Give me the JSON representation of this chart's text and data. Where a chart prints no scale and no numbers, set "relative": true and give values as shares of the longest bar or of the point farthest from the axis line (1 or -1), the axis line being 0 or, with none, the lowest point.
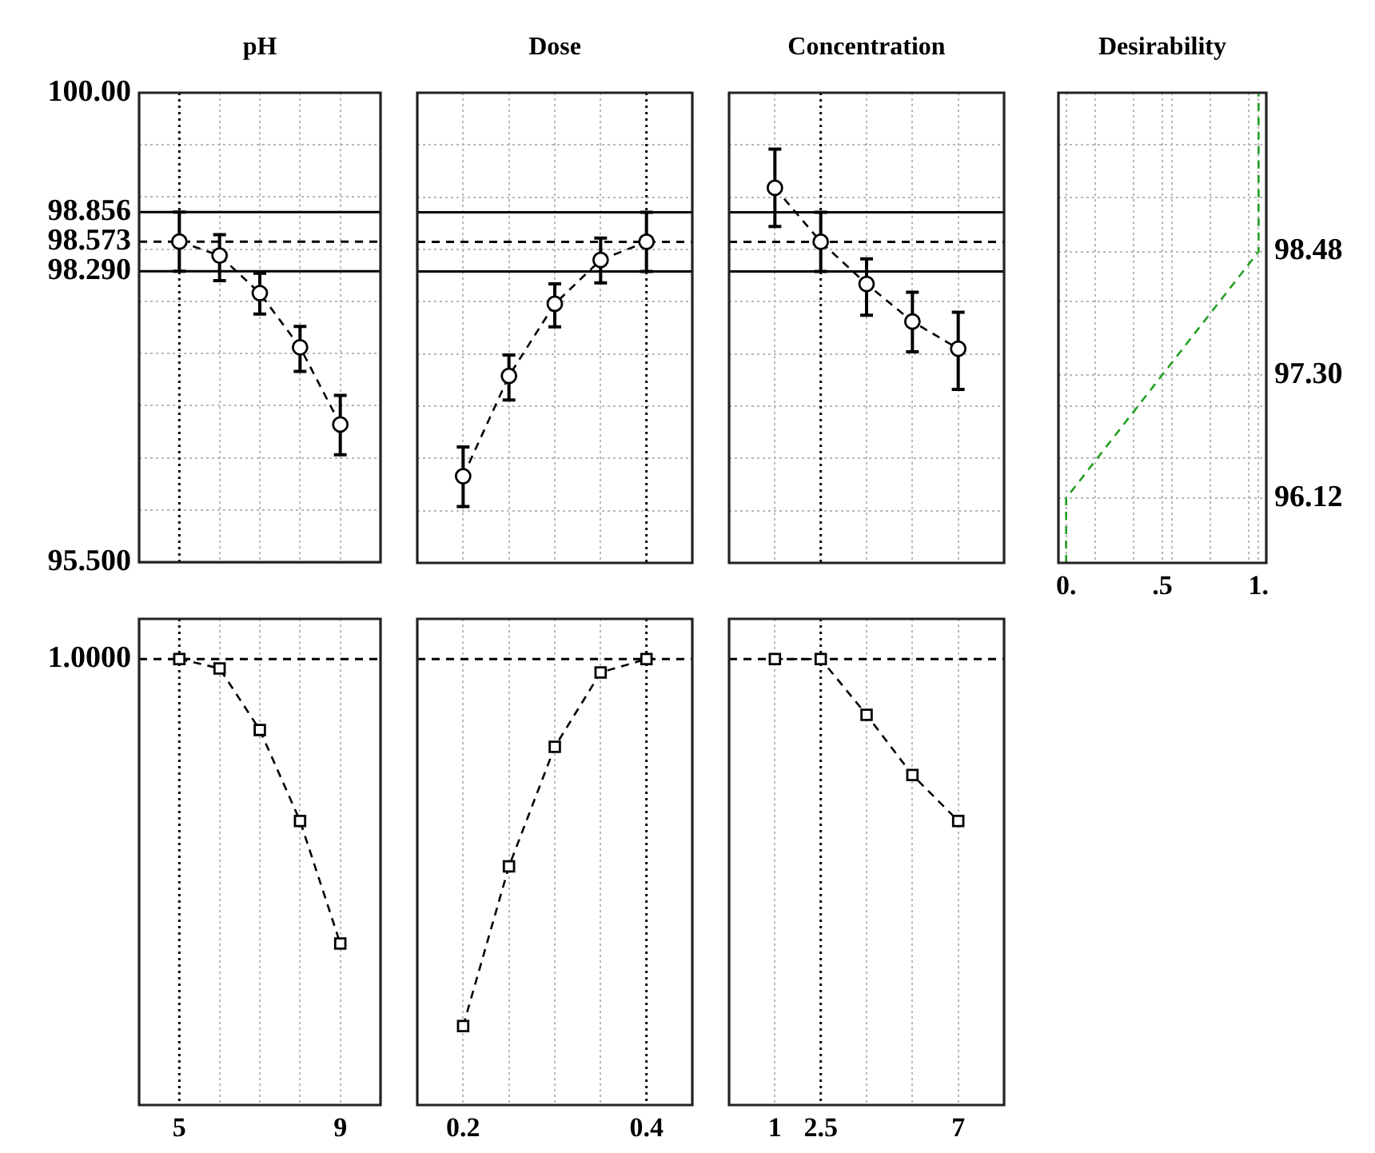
{
  "chart_data": [
    {
      "type": "line",
      "title": "pH",
      "x": [
        5,
        6,
        7,
        8,
        9
      ],
      "series": [
        {
          "color": "#000000",
          "values": [
            98.573,
            98.44,
            98.08,
            97.56,
            96.82
          ],
          "errors": [
            [
              98.29,
              98.856
            ],
            [
              98.2,
              98.64
            ],
            [
              97.88,
              98.27
            ],
            [
              97.33,
              97.76
            ],
            [
              96.53,
              97.1
            ]
          ]
        }
      ],
      "xlim": [
        4,
        10
      ],
      "xticks": [
        5,
        {
          "value": 6,
          "label": null
        },
        {
          "value": 7,
          "label": null
        },
        {
          "value": 8,
          "label": null
        },
        9
      ],
      "ylim": [
        95.5,
        100
      ],
      "yticks": [
        {
          "value": 100,
          "label": "100.00"
        },
        {
          "value": 99.5,
          "label": null
        },
        {
          "value": 99,
          "label": null
        },
        {
          "value": 98.5,
          "label": null
        },
        {
          "value": 98,
          "label": null
        },
        {
          "value": 97.5,
          "label": null
        },
        {
          "value": 97,
          "label": null
        },
        {
          "value": 96.5,
          "label": null
        },
        {
          "value": 96,
          "label": null
        },
        {
          "value": 95.5,
          "label": "95.500"
        }
      ],
      "ref_lines": [
        {
          "axis": "x",
          "value": 5,
          "line_style": "dotted"
        },
        {
          "axis": "y",
          "value": 98.856,
          "label": "98.856"
        },
        {
          "axis": "y",
          "value": 98.573,
          "line_style": "dashed",
          "label": "98.573"
        },
        {
          "axis": "y",
          "value": 98.29,
          "label": "98.290"
        }
      ],
      "grid": true,
      "tick_labels": "y",
      "marker": "circle",
      "line_style": "dashed"
    },
    {
      "type": "line",
      "title": "Dose",
      "x": [
        0.2,
        0.25,
        0.3,
        0.35,
        0.4
      ],
      "series": [
        {
          "color": "#000000",
          "values": [
            96.33,
            97.29,
            97.98,
            98.4,
            98.573
          ],
          "errors": [
            [
              96.04,
              96.61
            ],
            [
              97.06,
              97.49
            ],
            [
              97.76,
              98.17
            ],
            [
              98.18,
              98.61
            ],
            [
              98.29,
              98.856
            ]
          ]
        }
      ],
      "xlim": [
        0.15,
        0.45
      ],
      "xticks": [
        {
          "value": 0.2,
          "label": null
        },
        {
          "value": 0.25,
          "label": null
        },
        {
          "value": 0.3,
          "label": null
        },
        {
          "value": 0.35,
          "label": null
        },
        {
          "value": 0.4,
          "label": null
        }
      ],
      "ylim": [
        95.5,
        100
      ],
      "yticks": [
        {
          "value": 100,
          "label": null
        },
        {
          "value": 99.5,
          "label": null
        },
        {
          "value": 99,
          "label": null
        },
        {
          "value": 98.5,
          "label": null
        },
        {
          "value": 98,
          "label": null
        },
        {
          "value": 97.5,
          "label": null
        },
        {
          "value": 97,
          "label": null
        },
        {
          "value": 96.5,
          "label": null
        },
        {
          "value": 96,
          "label": null
        },
        {
          "value": 95.5,
          "label": null
        }
      ],
      "ref_lines": [
        {
          "axis": "x",
          "value": 0.4,
          "line_style": "dotted"
        },
        {
          "axis": "y",
          "value": 98.856
        },
        {
          "axis": "y",
          "value": 98.573,
          "line_style": "dashed"
        },
        {
          "axis": "y",
          "value": 98.29
        }
      ],
      "grid": true,
      "tick_labels": false,
      "marker": "circle",
      "line_style": "dashed"
    },
    {
      "type": "line",
      "title": "Concentration",
      "x": [
        1,
        2.5,
        4,
        5.5,
        7
      ],
      "series": [
        {
          "color": "#000000",
          "values": [
            99.09,
            98.573,
            98.17,
            97.81,
            97.55
          ],
          "errors": [
            [
              98.72,
              99.46
            ],
            [
              98.29,
              98.856
            ],
            [
              97.87,
              98.41
            ],
            [
              97.52,
              98.09
            ],
            [
              97.16,
              97.9
            ]
          ]
        }
      ],
      "xlim": [
        -0.5,
        8.5
      ],
      "xticks": [
        {
          "value": 1,
          "label": null
        },
        {
          "value": 2.5,
          "label": null
        },
        {
          "value": 4,
          "label": null
        },
        {
          "value": 5.5,
          "label": null
        },
        {
          "value": 7,
          "label": null
        }
      ],
      "ylim": [
        95.5,
        100
      ],
      "yticks": [
        {
          "value": 100,
          "label": null
        },
        {
          "value": 99.5,
          "label": null
        },
        {
          "value": 99,
          "label": null
        },
        {
          "value": 98.5,
          "label": null
        },
        {
          "value": 98,
          "label": null
        },
        {
          "value": 97.5,
          "label": null
        },
        {
          "value": 97,
          "label": null
        },
        {
          "value": 96.5,
          "label": null
        },
        {
          "value": 96,
          "label": null
        },
        {
          "value": 95.5,
          "label": null
        }
      ],
      "ref_lines": [
        {
          "axis": "x",
          "value": 2.5,
          "line_style": "dotted"
        },
        {
          "axis": "y",
          "value": 98.856
        },
        {
          "axis": "y",
          "value": 98.573,
          "line_style": "dashed"
        },
        {
          "axis": "y",
          "value": 98.29
        }
      ],
      "grid": true,
      "tick_labels": false,
      "marker": "circle",
      "line_style": "dashed"
    },
    {
      "type": "line",
      "title": "Desirability",
      "x": [
        0,
        0,
        1,
        1
      ],
      "series": [
        {
          "color": "#22a022",
          "values": [
            95.5,
            96.12,
            98.48,
            100
          ],
          "axis": "y2"
        }
      ],
      "xlim": [
        -0.04,
        1.04
      ],
      "xticks": [
        {
          "value": 0,
          "label": "0."
        },
        {
          "value": 0.15,
          "label": null
        },
        {
          "value": 0.35,
          "label": null
        },
        {
          "value": 0.5,
          "label": ".5"
        },
        {
          "value": 0.55,
          "label": null
        },
        {
          "value": 0.75,
          "label": null
        },
        {
          "value": 0.95,
          "label": null
        },
        {
          "value": 1,
          "label": "1."
        }
      ],
      "y2lim": [
        95.5,
        100
      ],
      "y2ticks": [
        {
          "value": 99.5,
          "label": null
        },
        {
          "value": 99,
          "label": null
        },
        {
          "value": 98.48,
          "label": "98.48"
        },
        {
          "value": 98,
          "label": null
        },
        {
          "value": 97.3,
          "label": "97.30"
        },
        {
          "value": 97,
          "label": null
        },
        {
          "value": 96.5,
          "label": null
        },
        {
          "value": 96.12,
          "label": "96.12"
        }
      ],
      "grid": true,
      "marker": "none",
      "line_style": "dashed"
    },
    {
      "type": "line",
      "relative": true,
      "x": [
        5,
        6,
        7,
        8,
        9
      ],
      "series": [
        {
          "color": "#000000",
          "values": [
            1,
            0.979,
            0.841,
            0.637,
            0.362
          ]
        }
      ],
      "xlim": [
        4,
        10
      ],
      "xticks": [
        5,
        {
          "value": 6,
          "label": null
        },
        {
          "value": 7,
          "label": null
        },
        {
          "value": 8,
          "label": null
        },
        9
      ],
      "ref_lines": [
        {
          "axis": "x",
          "value": 5,
          "line_style": "dotted"
        },
        {
          "axis": "y",
          "value": 1,
          "line_style": "dashed",
          "label": "1.0000"
        }
      ],
      "grid": "x",
      "marker": "square",
      "line_style": "dashed"
    },
    {
      "type": "line",
      "relative": true,
      "x": [
        0.2,
        0.25,
        0.3,
        0.35,
        0.4
      ],
      "series": [
        {
          "color": "#000000",
          "values": [
            0.177,
            0.535,
            0.803,
            0.97,
            1
          ]
        }
      ],
      "xlim": [
        0.15,
        0.45
      ],
      "xticks": [
        0.2,
        {
          "value": 0.25,
          "label": null
        },
        {
          "value": 0.3,
          "label": null
        },
        {
          "value": 0.35,
          "label": null
        },
        0.4
      ],
      "ref_lines": [
        {
          "axis": "x",
          "value": 0.4,
          "line_style": "dotted"
        },
        {
          "axis": "y",
          "value": 1,
          "line_style": "dashed"
        }
      ],
      "grid": "x",
      "marker": "square",
      "line_style": "dashed"
    },
    {
      "type": "line",
      "relative": true,
      "x": [
        1,
        2.5,
        4,
        5.5,
        7
      ],
      "series": [
        {
          "color": "#000000",
          "values": [
            1,
            1,
            0.875,
            0.74,
            0.637
          ]
        }
      ],
      "xlim": [
        -0.5,
        8.5
      ],
      "xticks": [
        1,
        2.5,
        {
          "value": 4,
          "label": null
        },
        {
          "value": 5.5,
          "label": null
        },
        7
      ],
      "ref_lines": [
        {
          "axis": "x",
          "value": 2.5,
          "line_style": "dotted"
        },
        {
          "axis": "y",
          "value": 1,
          "line_style": "dashed"
        }
      ],
      "grid": "x",
      "marker": "square",
      "line_style": "dashed"
    }
  ]
}
